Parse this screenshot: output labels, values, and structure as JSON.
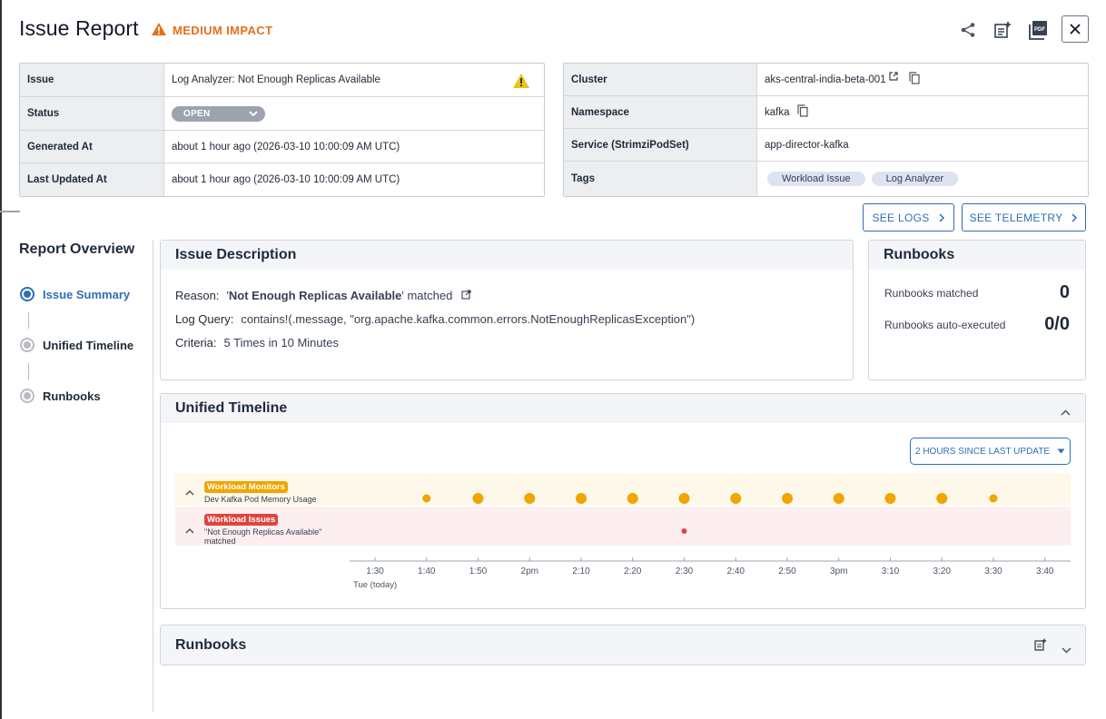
{
  "header": {
    "title": "Issue Report",
    "impact": "MEDIUM IMPACT",
    "icons": [
      "share-icon",
      "add-note-icon",
      "pdf-icon",
      "close-icon"
    ]
  },
  "left_table": {
    "rows": [
      {
        "label": "Issue",
        "value": "Log Analyzer: Not Enough Replicas Available"
      },
      {
        "label": "Status",
        "value": "OPEN"
      },
      {
        "label": "Generated At",
        "value": "about 1 hour ago (2026-03-10 10:00:09 AM UTC)"
      },
      {
        "label": "Last Updated At",
        "value": "about 1 hour ago (2026-03-10 10:00:09 AM UTC)"
      }
    ]
  },
  "right_table": {
    "rows": [
      {
        "label": "Cluster",
        "value": "aks-central-india-beta-001"
      },
      {
        "label": "Namespace",
        "value": "kafka"
      },
      {
        "label": "Service (StrimziPodSet)",
        "value": "app-director-kafka"
      },
      {
        "label": "Tags",
        "tags": [
          "Workload Issue",
          "Log Analyzer"
        ]
      }
    ]
  },
  "actions": {
    "see_logs": "SEE LOGS",
    "see_telemetry": "SEE TELEMETRY"
  },
  "overview": {
    "title": "Report Overview",
    "steps": [
      "Issue Summary",
      "Unified Timeline",
      "Runbooks"
    ]
  },
  "description": {
    "title": "Issue Description",
    "reason_label": "Reason:",
    "reason_quote_open": "'",
    "reason_value": "Not Enough Replicas Available",
    "reason_suffix": "' matched",
    "query_label": "Log Query:",
    "query_value": "contains!(.message, \"org.apache.kafka.common.errors.NotEnoughReplicasException\")",
    "criteria_label": "Criteria:",
    "criteria_value": "5 Times in 10 Minutes"
  },
  "runbooks_summary": {
    "title": "Runbooks",
    "matched_label": "Runbooks matched",
    "matched_value": "0",
    "auto_label": "Runbooks auto-executed",
    "auto_value": "0/0"
  },
  "timeline": {
    "title": "Unified Timeline",
    "range": "2 HOURS SINCE LAST UPDATE",
    "lanes": [
      {
        "tag": "Workload Monitors",
        "sub": "Dev Kafka Pod Memory Usage",
        "color": "#f0a500",
        "bg": "#fdf8ea"
      },
      {
        "tag": "Workload Issues",
        "sub": "\"Not Enough Replicas Available\" matched",
        "color": "#e0443e",
        "bg": "#fdeff0"
      }
    ],
    "ticks": [
      "1:30",
      "1:40",
      "1:50",
      "2pm",
      "2:10",
      "2:20",
      "2:30",
      "2:40",
      "2:50",
      "3pm",
      "3:10",
      "3:20",
      "3:30",
      "3:40"
    ],
    "day_label": "Tue (today)",
    "monitor_events": [
      "1:40",
      "1:50",
      "2pm",
      "2:10",
      "2:20",
      "2:30",
      "2:40",
      "2:50",
      "3pm",
      "3:10",
      "3:20",
      "3:30"
    ],
    "issue_events": [
      "2:30"
    ]
  },
  "runbooks_section": {
    "title": "Runbooks"
  }
}
